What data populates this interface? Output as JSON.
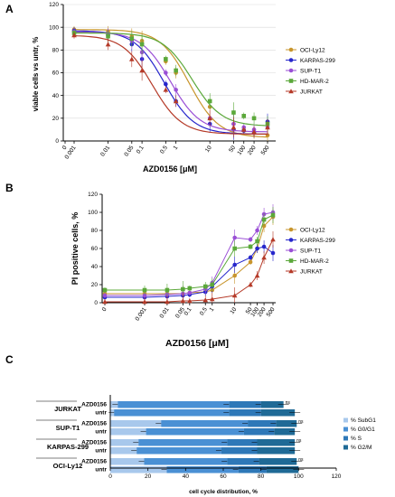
{
  "colors": {
    "OCI-Ly12": "#c8952c",
    "KARPAS-299": "#2626cc",
    "SUP-T1": "#9a4fd6",
    "HD-MAR-2": "#5ba83a",
    "JURKAT": "#b53a28",
    "subg1": "#a8c8ec",
    "g0g1": "#4a90d4",
    "s": "#2e78b8",
    "g2m": "#1f6a96"
  },
  "chart_data": [
    {
      "type": "line",
      "panel": "A",
      "xlabel": "AZD0156 [μM]",
      "ylabel": "viable cells vs untr, %",
      "xscale": "log",
      "ylim": [
        0,
        120
      ],
      "yticks": [
        "0",
        "20",
        "40",
        "60",
        "80",
        "100",
        "120"
      ],
      "xticks": [
        {
          "label": "0",
          "value": 0
        },
        {
          "label": "0.001",
          "value": 0.001
        },
        {
          "label": "0.01",
          "value": 0.01
        },
        {
          "label": "0.05",
          "value": 0.05
        },
        {
          "label": "0.1",
          "value": 0.1
        },
        {
          "label": "0.5",
          "value": 0.5
        },
        {
          "label": "1",
          "value": 1
        },
        {
          "label": "10",
          "value": 10
        },
        {
          "label": "50",
          "value": 50
        },
        {
          "label": "100",
          "value": 100
        },
        {
          "label": "200",
          "value": 200
        },
        {
          "label": "500",
          "value": 500
        }
      ],
      "series": [
        {
          "name": "OCI-Ly12",
          "marker": "circle",
          "ic50": 2.5,
          "x": [
            0.001,
            0.01,
            0.05,
            0.1,
            0.5,
            1,
            10,
            50,
            100,
            200,
            500
          ],
          "y": [
            98,
            96,
            92,
            88,
            70,
            60,
            30,
            15,
            10,
            7,
            5
          ]
        },
        {
          "name": "KARPAS-299",
          "marker": "circle",
          "ic50": 0.45,
          "x": [
            0.001,
            0.01,
            0.05,
            0.1,
            0.5,
            1,
            10,
            50,
            100,
            200,
            500
          ],
          "y": [
            97,
            93,
            85,
            72,
            50,
            35,
            15,
            10,
            9,
            8,
            17
          ]
        },
        {
          "name": "SUP-T1",
          "marker": "circle",
          "ic50": 0.7,
          "x": [
            0.001,
            0.01,
            0.05,
            0.1,
            0.5,
            1,
            10,
            50,
            100,
            200,
            500
          ],
          "y": [
            96,
            94,
            88,
            78,
            60,
            45,
            20,
            15,
            12,
            10,
            12
          ]
        },
        {
          "name": "HD-MAR-2",
          "marker": "square",
          "ic50": 3,
          "x": [
            0.001,
            0.01,
            0.05,
            0.1,
            0.5,
            1,
            10,
            50,
            100,
            200,
            500
          ],
          "y": [
            95,
            92,
            90,
            85,
            72,
            62,
            35,
            25,
            22,
            20,
            15
          ]
        },
        {
          "name": "JURKAT",
          "marker": "triangle",
          "ic50": 0.2,
          "x": [
            0.001,
            0.01,
            0.05,
            0.1,
            0.5,
            1,
            10,
            50,
            100,
            200,
            500
          ],
          "y": [
            93,
            85,
            72,
            62,
            45,
            35,
            20,
            12,
            10,
            8,
            12
          ]
        }
      ],
      "legend_position": "right"
    },
    {
      "type": "line",
      "panel": "B",
      "xlabel": "AZD0156 [μM]",
      "ylabel": "PI positive cells, %",
      "xscale": "log",
      "ylim": [
        0,
        120
      ],
      "yticks": [
        "0",
        "20",
        "40",
        "60",
        "80",
        "100",
        "120"
      ],
      "xticks": [
        {
          "label": "0",
          "value": 0
        },
        {
          "label": "0.001",
          "value": 0.001
        },
        {
          "label": "0.01",
          "value": 0.01
        },
        {
          "label": "0.05",
          "value": 0.05
        },
        {
          "label": "0.1",
          "value": 0.1
        },
        {
          "label": "0.5",
          "value": 0.5
        },
        {
          "label": "1",
          "value": 1
        },
        {
          "label": "10",
          "value": 10
        },
        {
          "label": "50",
          "value": 50
        },
        {
          "label": "100",
          "value": 100
        },
        {
          "label": "200",
          "value": 200
        },
        {
          "label": "500",
          "value": 500
        }
      ],
      "series": [
        {
          "name": "OCI-Ly12",
          "marker": "circle",
          "x": [
            0,
            0.001,
            0.01,
            0.05,
            0.1,
            0.5,
            1,
            10,
            50,
            100,
            200,
            500
          ],
          "y": [
            10,
            10,
            10,
            10,
            11,
            12,
            14,
            30,
            45,
            60,
            85,
            95
          ]
        },
        {
          "name": "KARPAS-299",
          "marker": "circle",
          "x": [
            0,
            0.001,
            0.01,
            0.05,
            0.1,
            0.5,
            1,
            10,
            50,
            100,
            200,
            500
          ],
          "y": [
            6,
            6,
            7,
            8,
            9,
            12,
            18,
            42,
            50,
            60,
            62,
            55
          ]
        },
        {
          "name": "SUP-T1",
          "marker": "circle",
          "x": [
            0,
            0.001,
            0.01,
            0.05,
            0.1,
            0.5,
            1,
            10,
            50,
            100,
            200,
            500
          ],
          "y": [
            8,
            8,
            9,
            10,
            11,
            15,
            22,
            72,
            70,
            80,
            98,
            100
          ]
        },
        {
          "name": "HD-MAR-2",
          "marker": "square",
          "x": [
            0,
            0.001,
            0.01,
            0.05,
            0.1,
            0.5,
            1,
            10,
            50,
            100,
            200,
            500
          ],
          "y": [
            14,
            14,
            14,
            15,
            16,
            18,
            20,
            60,
            62,
            68,
            92,
            97
          ]
        },
        {
          "name": "JURKAT",
          "marker": "triangle",
          "x": [
            0,
            0.001,
            0.01,
            0.05,
            0.1,
            0.5,
            1,
            10,
            50,
            100,
            200,
            500
          ],
          "y": [
            1,
            1,
            1,
            2,
            2,
            3,
            4,
            8,
            20,
            30,
            50,
            70
          ]
        }
      ],
      "legend_position": "right"
    },
    {
      "type": "bar",
      "panel": "C",
      "orientation": "horizontal",
      "stacked": true,
      "xlabel": "cell cycle distribution, %",
      "xlim": [
        0,
        120
      ],
      "xticks": [
        "0",
        "20",
        "40",
        "60",
        "80",
        "100",
        "120"
      ],
      "series_names": [
        "% SubG1",
        "% G0/G1",
        "% S",
        "% G2/M"
      ],
      "groups": [
        {
          "name": "JURKAT",
          "rows": [
            {
              "label": "AZD0156",
              "values": [
                4,
                59,
                17,
                12
              ],
              "annot": [
                "ns",
                "ns",
                "ns",
                "ns"
              ]
            },
            {
              "label": "untr",
              "values": [
                2,
                61,
                17,
                18
              ],
              "annot": [
                "",
                "",
                "",
                ""
              ]
            }
          ]
        },
        {
          "name": "SUP-T1",
          "rows": [
            {
              "label": "AZD0156",
              "values": [
                27,
                46,
                15,
                11
              ],
              "annot": [
                "ns",
                "ns",
                "ns",
                "ns"
              ]
            },
            {
              "label": "untr",
              "values": [
                19,
                52,
                16,
                11
              ],
              "annot": [
                "",
                "",
                "",
                ""
              ]
            }
          ]
        },
        {
          "name": "KARPAS-299",
          "rows": [
            {
              "label": "AZD0156",
              "values": [
                15,
                47,
                16,
                20
              ],
              "annot": [
                "ns",
                "ns",
                "ns",
                "ns"
              ]
            },
            {
              "label": "untr",
              "values": [
                14,
                45,
                19,
                20
              ],
              "annot": [
                "",
                "",
                "",
                ""
              ]
            }
          ]
        },
        {
          "name": "OCI-Ly12",
          "rows": [
            {
              "label": "AZD0156",
              "values": [
                18,
                44,
                17,
                20
              ],
              "annot": [
                "ns",
                "ns",
                "ns",
                "ns"
              ]
            },
            {
              "label": "untr",
              "values": [
                30,
                38,
                15,
                17
              ],
              "annot": [
                "",
                "",
                "",
                ""
              ]
            }
          ]
        }
      ],
      "legend_position": "right"
    }
  ]
}
